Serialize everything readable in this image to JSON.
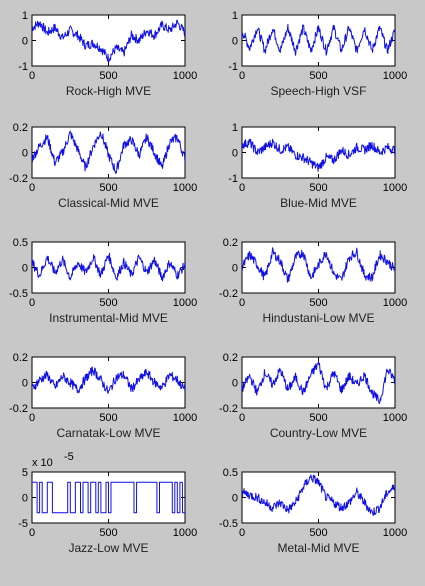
{
  "chart_data": [
    {
      "type": "line",
      "xlabel": "Rock-High MVE",
      "xlim": [
        0,
        1000
      ],
      "ylim": [
        -1,
        1
      ],
      "yticks": [
        "1",
        "0",
        "-1"
      ],
      "xticks": [
        "0",
        "500",
        "1000"
      ],
      "series": [
        {
          "color": "#1010e6",
          "x": [
            0,
            50,
            100,
            150,
            200,
            250,
            300,
            350,
            400,
            450,
            500,
            550,
            600,
            650,
            700,
            750,
            800,
            850,
            900,
            950,
            1000
          ],
          "values": [
            0.5,
            0.7,
            0.3,
            0.5,
            0.1,
            0.4,
            0.2,
            -0.2,
            -0.1,
            -0.3,
            -0.7,
            -0.3,
            -0.5,
            0.2,
            0.0,
            0.4,
            0.2,
            0.6,
            0.4,
            0.7,
            0.3
          ]
        }
      ]
    },
    {
      "type": "line",
      "xlabel": "Speech-High VSF",
      "xlim": [
        0,
        1000
      ],
      "ylim": [
        -1,
        1
      ],
      "yticks": [
        "1",
        "0",
        "-1"
      ],
      "xticks": [
        "0",
        "500",
        "1000"
      ],
      "series": [
        {
          "color": "#1010e6",
          "x": [
            0,
            50,
            100,
            150,
            200,
            250,
            300,
            350,
            400,
            450,
            500,
            550,
            600,
            650,
            700,
            750,
            800,
            850,
            900,
            950,
            1000
          ],
          "values": [
            0.4,
            -0.3,
            0.5,
            -0.4,
            0.5,
            -0.4,
            0.5,
            -0.4,
            0.5,
            -0.4,
            0.5,
            -0.4,
            0.5,
            -0.4,
            0.5,
            -0.4,
            0.5,
            -0.4,
            0.5,
            -0.4,
            0.4
          ]
        }
      ]
    },
    {
      "type": "line",
      "xlabel": "Classical-Mid MVE",
      "xlim": [
        0,
        1000
      ],
      "ylim": [
        -0.2,
        0.2
      ],
      "yticks": [
        "0.2",
        "0",
        "-0.2"
      ],
      "xticks": [
        "0",
        "500",
        "1000"
      ],
      "series": [
        {
          "color": "#1010e6",
          "x": [
            0,
            50,
            100,
            150,
            200,
            250,
            300,
            350,
            400,
            450,
            500,
            550,
            600,
            650,
            700,
            750,
            800,
            850,
            900,
            950,
            1000
          ],
          "values": [
            -0.05,
            0.05,
            0.12,
            -0.08,
            0.0,
            0.15,
            0.02,
            -0.12,
            0.05,
            0.16,
            -0.02,
            -0.15,
            0.06,
            0.1,
            -0.02,
            0.12,
            0.0,
            -0.12,
            0.08,
            0.12,
            -0.05
          ]
        }
      ]
    },
    {
      "type": "line",
      "xlabel": "Blue-Mid MVE",
      "xlim": [
        0,
        1000
      ],
      "ylim": [
        -1,
        1
      ],
      "yticks": [
        "1",
        "0",
        "-1"
      ],
      "xticks": [
        "0",
        "500",
        "1000"
      ],
      "series": [
        {
          "color": "#1010e6",
          "x": [
            0,
            50,
            100,
            150,
            200,
            250,
            300,
            350,
            400,
            450,
            500,
            550,
            600,
            650,
            700,
            750,
            800,
            850,
            900,
            950,
            1000
          ],
          "values": [
            0.3,
            0.4,
            0.0,
            0.2,
            0.4,
            0.1,
            0.2,
            -0.1,
            -0.2,
            -0.4,
            -0.6,
            -0.2,
            -0.3,
            0.1,
            -0.1,
            0.2,
            0.1,
            0.3,
            0.0,
            0.2,
            0.1
          ]
        }
      ]
    },
    {
      "type": "line",
      "xlabel": "Instrumental-Mid MVE",
      "xlim": [
        0,
        1000
      ],
      "ylim": [
        -0.5,
        0.5
      ],
      "yticks": [
        "0.5",
        "0",
        "-0.5"
      ],
      "xticks": [
        "0",
        "500",
        "1000"
      ],
      "series": [
        {
          "color": "#1010e6",
          "x": [
            0,
            50,
            100,
            150,
            200,
            250,
            300,
            350,
            400,
            450,
            500,
            550,
            600,
            650,
            700,
            750,
            800,
            850,
            900,
            950,
            1000
          ],
          "values": [
            0.1,
            -0.15,
            0.2,
            -0.1,
            0.15,
            -0.2,
            0.1,
            -0.1,
            0.2,
            -0.15,
            0.25,
            -0.2,
            0.1,
            -0.15,
            0.2,
            -0.1,
            0.15,
            -0.2,
            0.1,
            -0.15,
            0.05
          ]
        }
      ]
    },
    {
      "type": "line",
      "xlabel": "Hindustani-Low MVE",
      "xlim": [
        0,
        1000
      ],
      "ylim": [
        -0.2,
        0.2
      ],
      "yticks": [
        "0.2",
        "0",
        "-0.2"
      ],
      "xticks": [
        "0",
        "500",
        "1000"
      ],
      "series": [
        {
          "color": "#1010e6",
          "x": [
            0,
            50,
            100,
            150,
            200,
            250,
            300,
            350,
            400,
            450,
            500,
            550,
            600,
            650,
            700,
            750,
            800,
            850,
            900,
            950,
            1000
          ],
          "values": [
            0.0,
            0.1,
            0.02,
            -0.08,
            0.12,
            0.05,
            -0.1,
            0.08,
            0.12,
            -0.08,
            0.02,
            0.12,
            -0.05,
            -0.1,
            0.08,
            0.12,
            -0.06,
            -0.08,
            0.1,
            0.05,
            -0.02
          ]
        }
      ]
    },
    {
      "type": "line",
      "xlabel": "Carnatak-Low MVE",
      "xlim": [
        0,
        1000
      ],
      "ylim": [
        -0.2,
        0.2
      ],
      "yticks": [
        "0.2",
        "0",
        "-0.2"
      ],
      "xticks": [
        "0",
        "500",
        "1000"
      ],
      "series": [
        {
          "color": "#1010e6",
          "x": [
            0,
            50,
            100,
            150,
            200,
            250,
            300,
            350,
            400,
            450,
            500,
            550,
            600,
            650,
            700,
            750,
            800,
            850,
            900,
            950,
            1000
          ],
          "values": [
            -0.05,
            0.02,
            0.06,
            -0.04,
            0.05,
            0.0,
            -0.06,
            0.03,
            0.1,
            0.02,
            -0.08,
            0.04,
            0.06,
            -0.05,
            0.02,
            0.08,
            0.0,
            -0.04,
            0.06,
            0.02,
            -0.06
          ]
        }
      ]
    },
    {
      "type": "line",
      "xlabel": "Country-Low MVE",
      "xlim": [
        0,
        1000
      ],
      "ylim": [
        -0.2,
        0.2
      ],
      "yticks": [
        "0.2",
        "0",
        "-0.2"
      ],
      "xticks": [
        "0",
        "500",
        "1000"
      ],
      "series": [
        {
          "color": "#1010e6",
          "x": [
            0,
            50,
            100,
            150,
            200,
            250,
            300,
            350,
            400,
            450,
            500,
            550,
            600,
            650,
            700,
            750,
            800,
            850,
            900,
            950,
            1000
          ],
          "values": [
            -0.05,
            0.05,
            -0.08,
            0.08,
            -0.02,
            0.1,
            -0.06,
            0.04,
            -0.08,
            0.06,
            0.15,
            -0.05,
            0.08,
            -0.06,
            0.05,
            -0.02,
            0.06,
            -0.08,
            -0.15,
            0.1,
            0.02
          ]
        }
      ]
    },
    {
      "type": "line",
      "xlabel": "Jazz-Low MVE",
      "xlim": [
        0,
        1000
      ],
      "ylim": [
        -5,
        5
      ],
      "exponent_label": "x 10",
      "exponent_power": "-5",
      "yticks": [
        "5",
        "0",
        "-5"
      ],
      "xticks": [
        "0",
        "500",
        "1000"
      ],
      "series": [
        {
          "color": "#1010e6",
          "x": [
            0,
            50,
            100,
            150,
            200,
            250,
            300,
            350,
            400,
            450,
            500,
            550,
            600,
            650,
            700,
            750,
            800,
            850,
            900,
            950,
            1000
          ],
          "values": [
            3,
            -3,
            3,
            -3,
            3,
            -3,
            3,
            -3,
            3,
            -3,
            3,
            -3,
            3,
            -3,
            3,
            -3,
            3,
            -3,
            3,
            -3,
            3
          ]
        }
      ]
    },
    {
      "type": "line",
      "xlabel": "Metal-Mid MVE",
      "xlim": [
        0,
        1000
      ],
      "ylim": [
        -0.5,
        0.5
      ],
      "yticks": [
        "0.5",
        "0",
        "-0.5"
      ],
      "xticks": [
        "0",
        "500",
        "1000"
      ],
      "series": [
        {
          "color": "#1010e6",
          "x": [
            0,
            50,
            100,
            150,
            200,
            250,
            300,
            350,
            400,
            450,
            500,
            550,
            600,
            650,
            700,
            750,
            800,
            850,
            900,
            950,
            1000
          ],
          "values": [
            0.1,
            0.05,
            0.0,
            -0.1,
            -0.2,
            -0.1,
            -0.25,
            -0.1,
            0.2,
            0.4,
            0.3,
            0.0,
            -0.1,
            -0.2,
            -0.1,
            0.1,
            -0.1,
            -0.3,
            -0.2,
            0.1,
            0.2
          ]
        }
      ]
    }
  ]
}
